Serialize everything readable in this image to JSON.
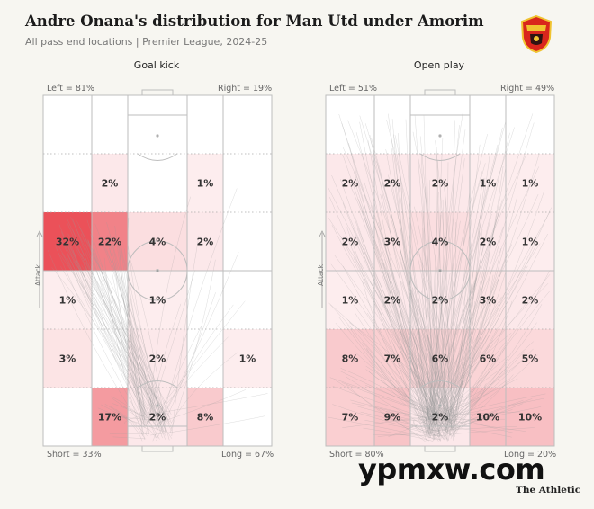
{
  "title": "Andre Onana's distribution for Man Utd under Amorim",
  "subtitle": "All pass end locations | Premier League, 2024-25",
  "brand": "The Athletic",
  "watermark": "ypmxw.com",
  "attack_label": "Attack",
  "colors": {
    "heat": "#e8323c",
    "line": "#9a9a9a",
    "background": "#f7f6f1"
  },
  "chart_data": [
    {
      "type": "heatmap",
      "title": "Goal kick",
      "corners": {
        "left": "Left = 81%",
        "right": "Right = 19%",
        "short": "Short = 33%",
        "long": "Long = 67%"
      },
      "cells": [
        [
          "",
          "",
          "",
          "",
          ""
        ],
        [
          "",
          "2%",
          "",
          "1%",
          ""
        ],
        [
          "32%",
          "22%",
          "4%",
          "2%",
          ""
        ],
        [
          "1%",
          "",
          "1%",
          "",
          ""
        ],
        [
          "3%",
          "",
          "2%",
          "",
          "1%"
        ],
        [
          "",
          "17%",
          "2%",
          "8%",
          ""
        ]
      ],
      "intensity": [
        [
          0,
          0,
          0,
          0,
          0
        ],
        [
          0,
          2,
          0,
          1,
          0
        ],
        [
          32,
          22,
          4,
          2,
          0
        ],
        [
          1,
          0,
          1,
          0,
          0
        ],
        [
          3,
          0,
          2,
          0,
          1
        ],
        [
          0,
          17,
          2,
          8,
          0
        ]
      ]
    },
    {
      "type": "heatmap",
      "title": "Open play",
      "corners": {
        "left": "Left = 51%",
        "right": "Right = 49%",
        "short": "Short = 80%",
        "long": "Long = 20%"
      },
      "cells": [
        [
          "",
          "",
          "",
          "",
          ""
        ],
        [
          "2%",
          "2%",
          "2%",
          "1%",
          "1%"
        ],
        [
          "2%",
          "3%",
          "4%",
          "2%",
          "1%"
        ],
        [
          "1%",
          "2%",
          "2%",
          "3%",
          "2%"
        ],
        [
          "8%",
          "7%",
          "6%",
          "6%",
          "5%"
        ],
        [
          "7%",
          "9%",
          "2%",
          "10%",
          "10%"
        ]
      ],
      "intensity": [
        [
          0,
          0,
          0,
          0,
          0
        ],
        [
          2,
          2,
          2,
          1,
          1
        ],
        [
          2,
          3,
          4,
          2,
          1
        ],
        [
          1,
          2,
          2,
          3,
          2
        ],
        [
          8,
          7,
          6,
          6,
          5
        ],
        [
          7,
          9,
          2,
          10,
          10
        ]
      ]
    }
  ]
}
